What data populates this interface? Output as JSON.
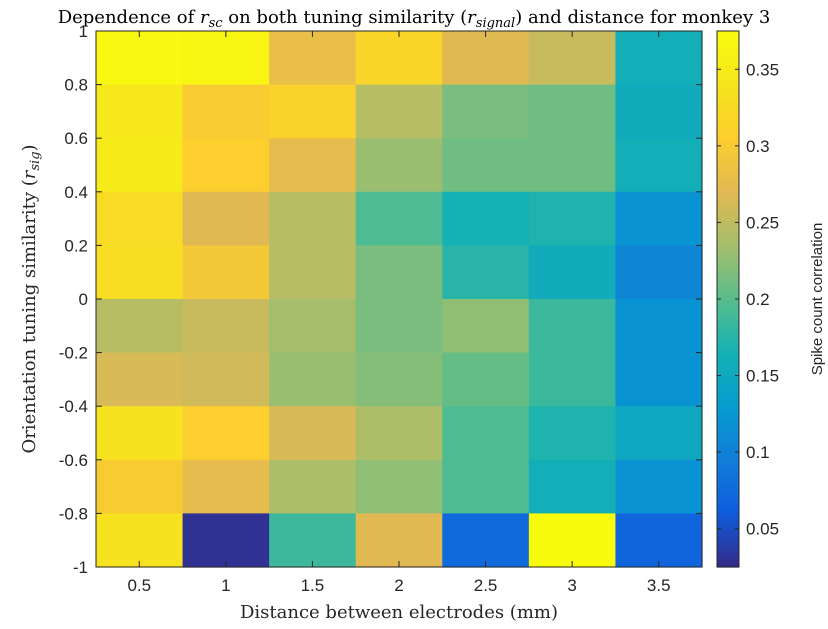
{
  "chart_data": {
    "type": "heatmap",
    "title_parts": [
      {
        "text": "Dependence of ",
        "style": "normal"
      },
      {
        "text": "r",
        "style": "italic"
      },
      {
        "text": "sc",
        "style": "sub"
      },
      {
        "text": " on both tuning similarity (",
        "style": "normal"
      },
      {
        "text": "r",
        "style": "italic"
      },
      {
        "text": "signal",
        "style": "sub"
      },
      {
        "text": ") and distance for monkey 3",
        "style": "normal"
      }
    ],
    "xlabel": "Distance between electrodes (mm)",
    "ylabel_parts": [
      {
        "text": "Orientation tuning similarity (",
        "style": "normal"
      },
      {
        "text": "r",
        "style": "italic"
      },
      {
        "text": "sig",
        "style": "sub"
      },
      {
        "text": ")",
        "style": "normal"
      }
    ],
    "colorbar_label": "Spike count correlation",
    "x_ticks": [
      "0.5",
      "1",
      "1.5",
      "2",
      "2.5",
      "3",
      "3.5"
    ],
    "y_ticks": [
      "1",
      "0.8",
      "0.6",
      "0.4",
      "0.2",
      "0",
      "-0.2",
      "-0.4",
      "-0.6",
      "-0.8",
      "-1"
    ],
    "colorbar_ticks": [
      "0.35",
      "0.3",
      "0.25",
      "0.2",
      "0.15",
      "0.1",
      "0.05"
    ],
    "x_centers": [
      0.5,
      1,
      1.5,
      2,
      2.5,
      3,
      3.5
    ],
    "y_centers": [
      0.9,
      0.7,
      0.5,
      0.3,
      0.1,
      -0.1,
      -0.3,
      -0.5,
      -0.7,
      -0.9
    ],
    "xlim": [
      0.25,
      3.75
    ],
    "ylim": [
      -1,
      1
    ],
    "clim": [
      0.025,
      0.375
    ],
    "colormap": "parula",
    "values": [
      [
        0.37,
        0.365,
        0.28,
        0.315,
        0.27,
        0.255,
        0.16
      ],
      [
        0.345,
        0.3,
        0.31,
        0.245,
        0.215,
        0.21,
        0.155
      ],
      [
        0.35,
        0.305,
        0.275,
        0.23,
        0.21,
        0.21,
        0.16
      ],
      [
        0.325,
        0.27,
        0.245,
        0.195,
        0.165,
        0.17,
        0.12
      ],
      [
        0.33,
        0.295,
        0.245,
        0.215,
        0.175,
        0.155,
        0.105
      ],
      [
        0.245,
        0.255,
        0.235,
        0.215,
        0.225,
        0.185,
        0.12
      ],
      [
        0.265,
        0.26,
        0.23,
        0.22,
        0.205,
        0.185,
        0.12
      ],
      [
        0.335,
        0.305,
        0.265,
        0.24,
        0.195,
        0.17,
        0.15
      ],
      [
        0.3,
        0.275,
        0.24,
        0.225,
        0.195,
        0.16,
        0.12
      ],
      [
        0.335,
        0.03,
        0.185,
        0.27,
        0.075,
        0.375,
        0.07
      ]
    ]
  }
}
